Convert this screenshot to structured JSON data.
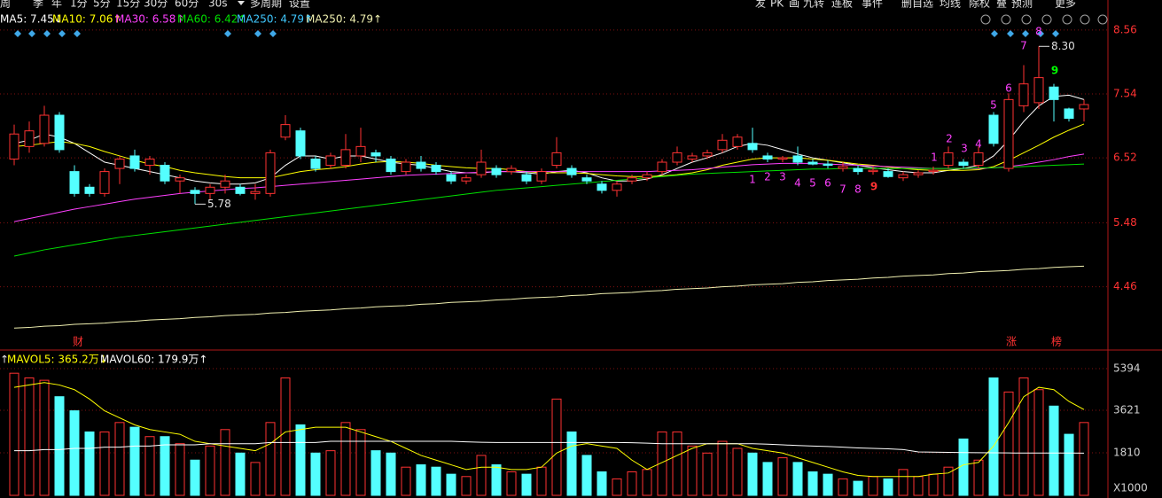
{
  "toolbar_left": [
    "周",
    "季",
    "年",
    "1分",
    "5分",
    "15分",
    "30分",
    "60分",
    "30s",
    "多周期",
    "设置"
  ],
  "toolbar_right": [
    "发",
    "PK",
    "画",
    "九转",
    "连板",
    "事件",
    "删自选",
    "均线",
    "除权",
    "叠",
    "预测",
    "更多"
  ],
  "chart_data": [
    {
      "type": "candlestick",
      "up_color": "#ff3232",
      "down_color": "#54ffff",
      "ylim": [
        3.45,
        9.04
      ],
      "yticks": [
        8.56,
        7.54,
        6.52,
        5.48,
        4.46
      ],
      "grid": true,
      "open": [
        6.5,
        6.7,
        6.75,
        7.2,
        6.3,
        6.05,
        5.95,
        6.35,
        6.55,
        6.4,
        6.4,
        6.15,
        6.0,
        5.95,
        6.05,
        6.05,
        5.95,
        5.95,
        6.85,
        6.95,
        6.5,
        6.4,
        6.4,
        6.55,
        6.6,
        6.5,
        6.3,
        6.45,
        6.4,
        6.25,
        6.15,
        6.25,
        6.35,
        6.3,
        6.25,
        6.15,
        6.4,
        6.35,
        6.2,
        6.1,
        6.0,
        6.15,
        6.2,
        6.3,
        6.45,
        6.5,
        6.55,
        6.65,
        6.7,
        6.75,
        6.55,
        6.5,
        6.55,
        6.45,
        6.42,
        6.35,
        6.35,
        6.3,
        6.3,
        6.2,
        6.25,
        6.3,
        6.4,
        6.45,
        6.4,
        7.2,
        6.35,
        7.35,
        7.4,
        7.65,
        7.3,
        7.3
      ],
      "close": [
        6.9,
        6.95,
        7.2,
        6.65,
        5.95,
        5.95,
        6.3,
        6.5,
        6.35,
        6.5,
        6.15,
        6.2,
        5.95,
        6.05,
        6.15,
        5.95,
        5.98,
        6.6,
        7.05,
        6.55,
        6.35,
        6.55,
        6.65,
        6.7,
        6.55,
        6.3,
        6.45,
        6.35,
        6.3,
        6.15,
        6.2,
        6.45,
        6.25,
        6.35,
        6.15,
        6.3,
        6.6,
        6.25,
        6.15,
        6.0,
        6.1,
        6.2,
        6.25,
        6.45,
        6.6,
        6.55,
        6.6,
        6.8,
        6.85,
        6.65,
        6.5,
        6.52,
        6.45,
        6.42,
        6.4,
        6.38,
        6.3,
        6.32,
        6.22,
        6.25,
        6.28,
        6.32,
        6.6,
        6.4,
        6.6,
        6.75,
        7.45,
        7.7,
        7.8,
        7.45,
        7.15,
        7.37
      ],
      "high": [
        7.05,
        7.1,
        7.35,
        7.25,
        6.4,
        6.1,
        6.35,
        6.55,
        6.65,
        6.55,
        6.45,
        6.25,
        6.05,
        6.1,
        6.25,
        6.1,
        6.1,
        6.65,
        7.2,
        7.0,
        6.55,
        6.6,
        6.9,
        7.0,
        6.65,
        6.55,
        6.5,
        6.55,
        6.45,
        6.3,
        6.25,
        6.65,
        6.4,
        6.4,
        6.3,
        6.35,
        6.85,
        6.4,
        6.25,
        6.15,
        6.15,
        6.25,
        6.3,
        6.5,
        6.7,
        6.6,
        6.65,
        6.9,
        6.9,
        7.0,
        6.6,
        6.55,
        6.7,
        6.5,
        6.48,
        6.45,
        6.4,
        6.38,
        6.35,
        6.3,
        6.32,
        6.38,
        6.7,
        6.5,
        6.7,
        7.25,
        7.55,
        8.0,
        8.3,
        7.7,
        7.32,
        7.45
      ],
      "low": [
        6.4,
        6.6,
        6.7,
        6.6,
        5.9,
        5.9,
        5.9,
        6.1,
        6.3,
        6.25,
        6.1,
        5.95,
        5.78,
        5.85,
        5.95,
        5.92,
        5.85,
        5.9,
        6.8,
        6.5,
        6.3,
        6.35,
        6.35,
        6.45,
        6.45,
        6.25,
        6.25,
        6.3,
        6.25,
        6.1,
        6.1,
        6.2,
        6.2,
        6.25,
        6.1,
        6.1,
        6.35,
        6.2,
        6.1,
        5.95,
        5.9,
        6.1,
        6.15,
        6.25,
        6.4,
        6.45,
        6.5,
        6.6,
        6.65,
        6.6,
        6.45,
        6.45,
        6.4,
        6.4,
        6.35,
        6.3,
        6.25,
        6.25,
        6.2,
        6.15,
        6.2,
        6.25,
        6.35,
        6.35,
        6.35,
        6.7,
        6.3,
        7.25,
        7.3,
        7.1,
        7.1,
        7.1
      ],
      "series": [
        {
          "name": "MA5: 7.45↓",
          "color": "#ffffff",
          "values": [
            6.75,
            6.8,
            6.9,
            6.85,
            6.75,
            6.6,
            6.45,
            6.4,
            6.35,
            6.3,
            6.25,
            6.2,
            6.15,
            6.12,
            6.1,
            6.1,
            6.12,
            6.2,
            6.4,
            6.55,
            6.55,
            6.5,
            6.55,
            6.55,
            6.5,
            6.45,
            6.42,
            6.4,
            6.35,
            6.3,
            6.28,
            6.28,
            6.3,
            6.3,
            6.28,
            6.26,
            6.3,
            6.32,
            6.28,
            6.2,
            6.15,
            6.15,
            6.18,
            6.25,
            6.35,
            6.45,
            6.52,
            6.6,
            6.7,
            6.75,
            6.72,
            6.65,
            6.58,
            6.52,
            6.48,
            6.44,
            6.4,
            6.36,
            6.33,
            6.3,
            6.28,
            6.28,
            6.32,
            6.35,
            6.4,
            6.55,
            6.8,
            7.1,
            7.35,
            7.5,
            7.52,
            7.45
          ]
        },
        {
          "name": "MA10: 7.06↑",
          "color": "#ffff00",
          "values": [
            6.7,
            6.72,
            6.75,
            6.78,
            6.75,
            6.7,
            6.62,
            6.55,
            6.48,
            6.42,
            6.38,
            6.32,
            6.28,
            6.25,
            6.22,
            6.2,
            6.2,
            6.2,
            6.25,
            6.3,
            6.33,
            6.35,
            6.38,
            6.42,
            6.45,
            6.46,
            6.45,
            6.43,
            6.4,
            6.38,
            6.36,
            6.35,
            6.35,
            6.33,
            6.3,
            6.28,
            6.28,
            6.28,
            6.27,
            6.25,
            6.23,
            6.22,
            6.22,
            6.23,
            6.25,
            6.28,
            6.33,
            6.4,
            6.45,
            6.5,
            6.52,
            6.52,
            6.52,
            6.5,
            6.48,
            6.45,
            6.42,
            6.4,
            6.37,
            6.35,
            6.33,
            6.32,
            6.32,
            6.32,
            6.33,
            6.38,
            6.48,
            6.6,
            6.72,
            6.85,
            6.96,
            7.06
          ]
        },
        {
          "name": "MA30: 6.58↑",
          "color": "#ff40ff",
          "values": [
            5.5,
            5.55,
            5.6,
            5.65,
            5.7,
            5.74,
            5.78,
            5.82,
            5.86,
            5.89,
            5.92,
            5.95,
            5.97,
            5.99,
            6.01,
            6.03,
            6.04,
            6.06,
            6.08,
            6.1,
            6.12,
            6.14,
            6.16,
            6.18,
            6.2,
            6.22,
            6.24,
            6.25,
            6.26,
            6.27,
            6.28,
            6.29,
            6.3,
            6.3,
            6.3,
            6.3,
            6.3,
            6.3,
            6.3,
            6.3,
            6.3,
            6.3,
            6.3,
            6.31,
            6.32,
            6.33,
            6.35,
            6.37,
            6.39,
            6.41,
            6.42,
            6.43,
            6.43,
            6.43,
            6.42,
            6.41,
            6.4,
            6.39,
            6.38,
            6.37,
            6.36,
            6.35,
            6.35,
            6.35,
            6.35,
            6.36,
            6.38,
            6.41,
            6.45,
            6.49,
            6.54,
            6.58
          ]
        },
        {
          "name": "MA60: 6.42↑",
          "color": "#00e000",
          "values": [
            4.95,
            5.0,
            5.05,
            5.09,
            5.13,
            5.17,
            5.21,
            5.25,
            5.28,
            5.31,
            5.34,
            5.37,
            5.4,
            5.43,
            5.46,
            5.49,
            5.52,
            5.55,
            5.58,
            5.61,
            5.64,
            5.67,
            5.7,
            5.73,
            5.76,
            5.79,
            5.82,
            5.85,
            5.88,
            5.91,
            5.94,
            5.97,
            6.0,
            6.02,
            6.04,
            6.06,
            6.08,
            6.1,
            6.12,
            6.14,
            6.16,
            6.18,
            6.2,
            6.22,
            6.24,
            6.26,
            6.27,
            6.28,
            6.29,
            6.3,
            6.31,
            6.32,
            6.33,
            6.34,
            6.34,
            6.35,
            6.35,
            6.35,
            6.35,
            6.35,
            6.35,
            6.35,
            6.35,
            6.35,
            6.36,
            6.36,
            6.37,
            6.38,
            6.39,
            6.4,
            6.41,
            6.42
          ]
        },
        {
          "name": "MA250: 4.79↑",
          "color": "#f0f0b0",
          "values": [
            3.8,
            3.81,
            3.83,
            3.84,
            3.86,
            3.87,
            3.88,
            3.9,
            3.91,
            3.93,
            3.94,
            3.95,
            3.97,
            3.98,
            4.0,
            4.01,
            4.02,
            4.04,
            4.05,
            4.07,
            4.08,
            4.09,
            4.11,
            4.12,
            4.14,
            4.15,
            4.16,
            4.18,
            4.19,
            4.21,
            4.22,
            4.23,
            4.25,
            4.26,
            4.28,
            4.29,
            4.3,
            4.32,
            4.33,
            4.35,
            4.36,
            4.37,
            4.39,
            4.4,
            4.42,
            4.43,
            4.44,
            4.46,
            4.47,
            4.49,
            4.5,
            4.51,
            4.53,
            4.54,
            4.56,
            4.57,
            4.58,
            4.6,
            4.61,
            4.63,
            4.64,
            4.65,
            4.67,
            4.68,
            4.7,
            4.71,
            4.72,
            4.74,
            4.75,
            4.77,
            4.78,
            4.79
          ]
        }
      ],
      "legend_extra": {
        "text": "MA250: 4.79↑",
        "color": "#40c8ff"
      },
      "extremes": [
        5.78,
        {
          "value": 8.3,
          "label": "8.30"
        }
      ],
      "annotations": [
        "财",
        "涨",
        "榜",
        "1",
        "2",
        "3",
        "4",
        "5",
        "6",
        "7",
        "8",
        "9",
        "1",
        "2",
        "3",
        "4",
        "5",
        "6",
        "7",
        "8",
        "9"
      ]
    },
    {
      "type": "bar",
      "ylim": [
        0,
        6150
      ],
      "yticks": [
        5394,
        3621,
        1810
      ],
      "unit_label": "X1000",
      "legend_prefix": "↑",
      "values": [
        5200,
        5000,
        4900,
        4200,
        3600,
        2700,
        2700,
        3100,
        2900,
        2500,
        2500,
        2200,
        1500,
        2100,
        2800,
        1800,
        1400,
        3100,
        5000,
        3000,
        1800,
        1900,
        3100,
        2800,
        1900,
        1800,
        1200,
        1300,
        1200,
        900,
        800,
        1700,
        1300,
        1000,
        900,
        1200,
        4100,
        2700,
        1700,
        1000,
        700,
        1000,
        1100,
        2700,
        2700,
        2100,
        1800,
        2300,
        2000,
        1800,
        1400,
        1600,
        1400,
        1000,
        900,
        700,
        600,
        800,
        700,
        1100,
        800,
        900,
        1200,
        2400,
        1500,
        5000,
        4400,
        5000,
        4500,
        3800,
        2600,
        3100
      ],
      "series": [
        {
          "name": "MAVOL5: 365.2万↓",
          "color": "#ffff00",
          "values": [
            4600,
            4700,
            4800,
            4700,
            4500,
            4100,
            3600,
            3300,
            3000,
            2800,
            2700,
            2600,
            2300,
            2200,
            2100,
            2000,
            1900,
            2200,
            2700,
            2800,
            2900,
            2900,
            2900,
            2700,
            2500,
            2300,
            2000,
            1700,
            1500,
            1300,
            1100,
            1200,
            1200,
            1100,
            1100,
            1200,
            1800,
            2100,
            2200,
            2100,
            2000,
            1500,
            1100,
            1400,
            1700,
            2000,
            2200,
            2200,
            2200,
            2000,
            1900,
            1800,
            1600,
            1400,
            1200,
            1000,
            850,
            800,
            800,
            800,
            800,
            900,
            950,
            1300,
            1400,
            2100,
            3100,
            4200,
            4600,
            4500,
            4000,
            3652
          ]
        },
        {
          "name": "MAVOL60: 179.9万↑",
          "color": "#ffffff",
          "values": [
            1900,
            1900,
            1950,
            1950,
            2000,
            2000,
            2050,
            2050,
            2100,
            2100,
            2150,
            2150,
            2150,
            2200,
            2200,
            2200,
            2200,
            2250,
            2250,
            2250,
            2250,
            2300,
            2300,
            2300,
            2300,
            2300,
            2300,
            2300,
            2300,
            2300,
            2280,
            2260,
            2250,
            2250,
            2250,
            2250,
            2250,
            2250,
            2250,
            2250,
            2250,
            2240,
            2220,
            2200,
            2200,
            2200,
            2200,
            2200,
            2200,
            2200,
            2180,
            2150,
            2120,
            2100,
            2080,
            2050,
            2020,
            2000,
            1980,
            1950,
            1850,
            1840,
            1830,
            1820,
            1815,
            1810,
            1805,
            1800,
            1800,
            1800,
            1800,
            1799
          ]
        }
      ]
    }
  ]
}
